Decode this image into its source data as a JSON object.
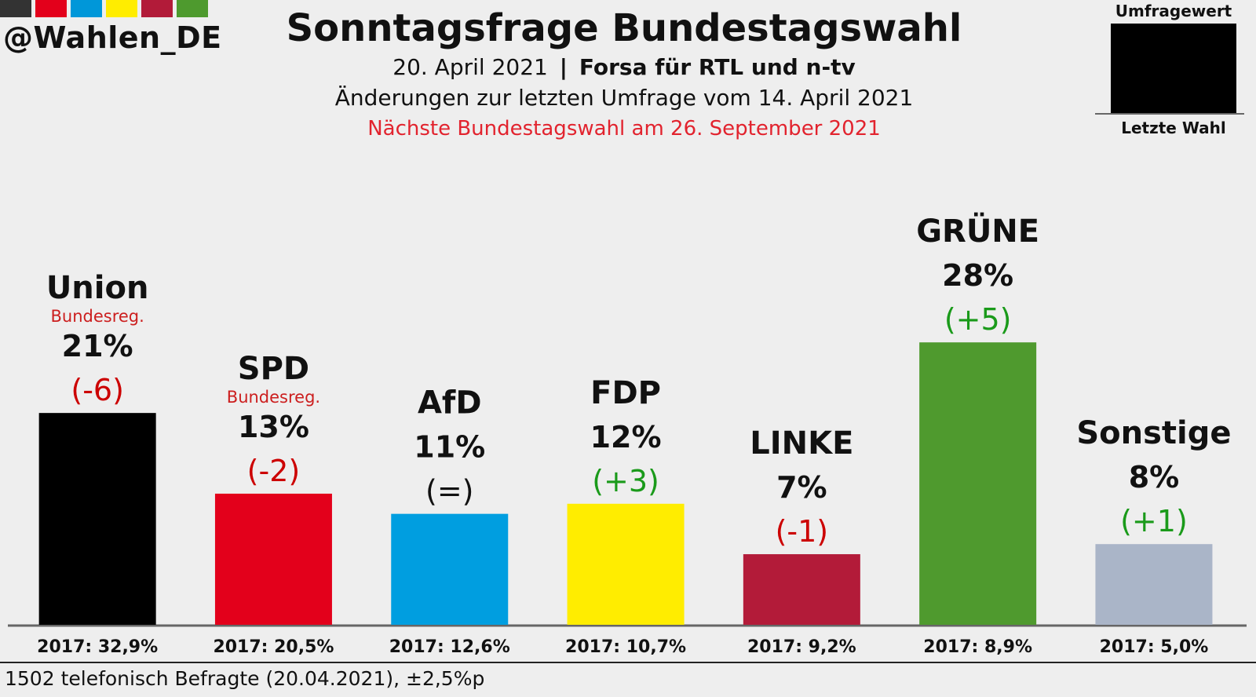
{
  "header": {
    "handle": "@Wahlen_DE",
    "strip_colors": [
      "#333333",
      "#e3001b",
      "#0097d9",
      "#ffed00",
      "#b21b39",
      "#4e9a2e"
    ],
    "title": "Sonntagsfrage Bundestagswahl",
    "date": "20. April 2021",
    "separator": "|",
    "source": "Forsa für RTL und n-tv",
    "changes_note": "Änderungen zur letzten Umfrage vom 14. April 2021",
    "next_election": "Nächste Bundestagswahl am 26. September 2021"
  },
  "legend": {
    "top_label": "Umfragewert",
    "bottom_label": "Letzte Wahl",
    "box_color": "#000000"
  },
  "chart_data": {
    "type": "bar",
    "categories": [
      "Union",
      "SPD",
      "AfD",
      "FDP",
      "LINKE",
      "GRÜNE",
      "Sonstige"
    ],
    "values": [
      21,
      13,
      11,
      12,
      7,
      28,
      8
    ],
    "value_labels": [
      "21%",
      "13%",
      "11%",
      "12%",
      "7%",
      "28%",
      "8%"
    ],
    "changes": [
      "(-6)",
      "(-2)",
      "(=)",
      "(+3)",
      "(-1)",
      "(+5)",
      "(+1)"
    ],
    "change_direction": [
      "down",
      "down",
      "same",
      "up",
      "down",
      "up",
      "up"
    ],
    "government_note": [
      "Bundesreg.",
      "Bundesreg.",
      "",
      "",
      "",
      "",
      ""
    ],
    "previous_election": [
      "2017: 32,9%",
      "2017: 20,5%",
      "2017: 12,6%",
      "2017: 10,7%",
      "2017: 9,2%",
      "2017: 8,9%",
      "2017: 5,0%"
    ],
    "colors": [
      "#000000",
      "#e3001b",
      "#009ee0",
      "#ffed00",
      "#b31b39",
      "#4f9a2e",
      "#aab5c8"
    ],
    "change_colors": {
      "down": "#cc0000",
      "up": "#1a9a1a",
      "same": "#111111"
    },
    "note_color": "#cc1e1e",
    "ylim": [
      0,
      28
    ]
  },
  "footer": {
    "note": "1502 telefonisch Befragte (20.04.2021), ±2,5%p"
  }
}
